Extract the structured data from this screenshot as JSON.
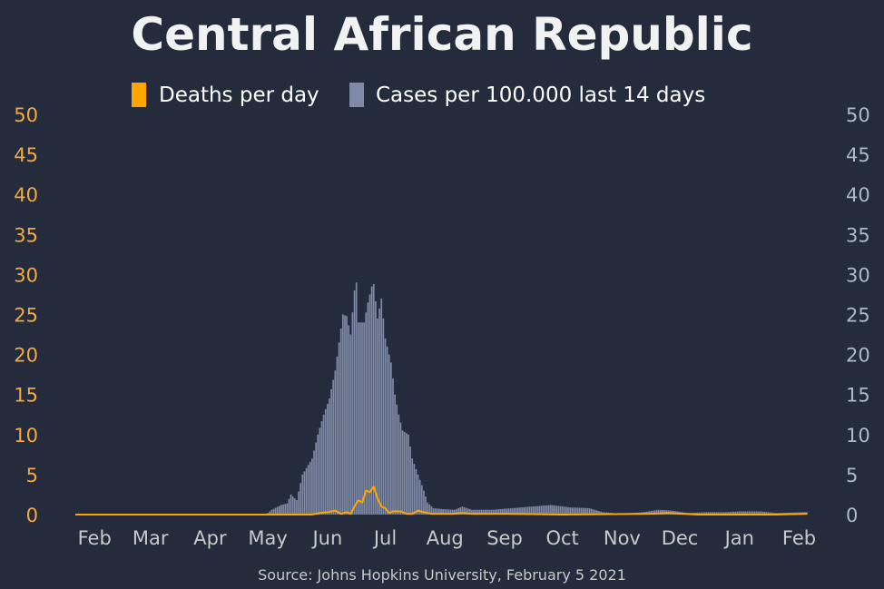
{
  "chart_data": {
    "type": "bar",
    "title": "Central African Republic",
    "source": "Source: Johns Hopkins University, February 5 2021",
    "legend": [
      {
        "label": "Deaths per day",
        "color": "#ffa500",
        "marker": "line"
      },
      {
        "label": "Cases per 100.000 last 14 days",
        "color": "#7f8aa6",
        "marker": "bar"
      }
    ],
    "legend_position": "top-center",
    "y_left": {
      "min": 0,
      "max": 50,
      "ticks": [
        "0",
        "5",
        "10",
        "15",
        "20",
        "25",
        "30",
        "35",
        "40",
        "45",
        "50"
      ],
      "color": "#f5a83c"
    },
    "y_right": {
      "min": 0,
      "max": 50,
      "ticks": [
        "0",
        "5",
        "10",
        "15",
        "20",
        "25",
        "30",
        "35",
        "40",
        "45",
        "50"
      ],
      "color": "#aeb8cc"
    },
    "x_ticks": [
      "Feb",
      "Mar",
      "Apr",
      "May",
      "Jun",
      "Jul",
      "Aug",
      "Sep",
      "Oct",
      "Nov",
      "Dec",
      "Jan",
      "Feb"
    ],
    "grid": false,
    "series": [
      {
        "name": "Cases per 100.000 last 14 days",
        "kind": "bar",
        "color": "#7f8aa6",
        "points": [
          [
            "2020-04-30",
            0
          ],
          [
            "2020-05-03",
            0.6
          ],
          [
            "2020-05-08",
            1.2
          ],
          [
            "2020-05-11",
            1.4
          ],
          [
            "2020-05-13",
            2.5
          ],
          [
            "2020-05-16",
            1.8
          ],
          [
            "2020-05-19",
            5.0
          ],
          [
            "2020-05-24",
            7.0
          ],
          [
            "2020-05-27",
            10.0
          ],
          [
            "2020-05-30",
            12.5
          ],
          [
            "2020-06-02",
            14.5
          ],
          [
            "2020-06-05",
            18.0
          ],
          [
            "2020-06-07",
            21.5
          ],
          [
            "2020-06-09",
            25.0
          ],
          [
            "2020-06-11",
            24.8
          ],
          [
            "2020-06-13",
            22.5
          ],
          [
            "2020-06-15",
            28.0
          ],
          [
            "2020-06-16",
            29.0
          ],
          [
            "2020-06-17",
            24.0
          ],
          [
            "2020-06-20",
            24.0
          ],
          [
            "2020-06-22",
            26.5
          ],
          [
            "2020-06-24",
            28.5
          ],
          [
            "2020-06-25",
            28.8
          ],
          [
            "2020-06-27",
            24.5
          ],
          [
            "2020-06-29",
            27.0
          ],
          [
            "2020-07-01",
            22.0
          ],
          [
            "2020-07-04",
            19.0
          ],
          [
            "2020-07-06",
            15.0
          ],
          [
            "2020-07-08",
            12.5
          ],
          [
            "2020-07-10",
            10.5
          ],
          [
            "2020-07-13",
            10.0
          ],
          [
            "2020-07-15",
            7.0
          ],
          [
            "2020-07-18",
            5.0
          ],
          [
            "2020-07-21",
            3.0
          ],
          [
            "2020-07-23",
            1.5
          ],
          [
            "2020-07-26",
            0.8
          ],
          [
            "2020-07-30",
            0.7
          ],
          [
            "2020-08-06",
            0.6
          ],
          [
            "2020-08-10",
            1.0
          ],
          [
            "2020-08-15",
            0.6
          ],
          [
            "2020-08-25",
            0.6
          ],
          [
            "2020-09-05",
            0.8
          ],
          [
            "2020-09-15",
            1.0
          ],
          [
            "2020-09-25",
            1.2
          ],
          [
            "2020-10-05",
            0.9
          ],
          [
            "2020-10-15",
            0.8
          ],
          [
            "2020-10-22",
            0.3
          ],
          [
            "2020-11-01",
            0.1
          ],
          [
            "2020-11-12",
            0.3
          ],
          [
            "2020-11-20",
            0.6
          ],
          [
            "2020-11-27",
            0.5
          ],
          [
            "2020-12-05",
            0.2
          ],
          [
            "2020-12-15",
            0.3
          ],
          [
            "2020-12-25",
            0.3
          ],
          [
            "2021-01-01",
            0.4
          ],
          [
            "2021-01-12",
            0.4
          ],
          [
            "2021-01-20",
            0.2
          ],
          [
            "2021-02-05",
            0.3
          ]
        ]
      },
      {
        "name": "Deaths per day",
        "kind": "line",
        "color": "#ffa500",
        "points": [
          [
            "2020-01-22",
            0
          ],
          [
            "2020-05-24",
            0
          ],
          [
            "2020-05-28",
            0.2
          ],
          [
            "2020-06-01",
            0.3
          ],
          [
            "2020-06-05",
            0.5
          ],
          [
            "2020-06-08",
            0.1
          ],
          [
            "2020-06-11",
            0.3
          ],
          [
            "2020-06-13",
            0.1
          ],
          [
            "2020-06-15",
            1.0
          ],
          [
            "2020-06-17",
            1.8
          ],
          [
            "2020-06-19",
            1.5
          ],
          [
            "2020-06-21",
            3.0
          ],
          [
            "2020-06-23",
            2.8
          ],
          [
            "2020-06-25",
            3.5
          ],
          [
            "2020-06-27",
            2.0
          ],
          [
            "2020-06-29",
            1.0
          ],
          [
            "2020-07-01",
            0.8
          ],
          [
            "2020-07-03",
            0.2
          ],
          [
            "2020-07-05",
            0.4
          ],
          [
            "2020-07-09",
            0.4
          ],
          [
            "2020-07-12",
            0.1
          ],
          [
            "2020-07-15",
            0.1
          ],
          [
            "2020-07-18",
            0.5
          ],
          [
            "2020-07-21",
            0.3
          ],
          [
            "2020-07-25",
            0.1
          ],
          [
            "2020-08-05",
            0.1
          ],
          [
            "2020-08-10",
            0.2
          ],
          [
            "2020-08-15",
            0.1
          ],
          [
            "2020-09-01",
            0.1
          ],
          [
            "2020-10-01",
            0
          ],
          [
            "2020-11-15",
            0.1
          ],
          [
            "2020-11-25",
            0.2
          ],
          [
            "2020-12-10",
            0
          ],
          [
            "2021-01-20",
            0
          ],
          [
            "2021-02-05",
            0.1
          ]
        ]
      }
    ]
  }
}
